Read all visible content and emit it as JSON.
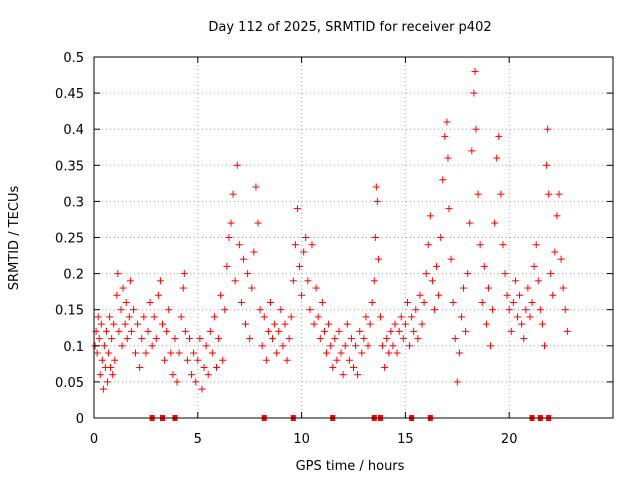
{
  "chart_data": {
    "type": "scatter",
    "title": "Day 112 of 2025, SRMTID for receiver p402",
    "xlabel": "GPS time / hours",
    "ylabel": "SRMTID / TECUs",
    "xlim": [
      0,
      25
    ],
    "ylim": [
      0,
      0.5
    ],
    "x_ticks": [
      0,
      5,
      10,
      15,
      20
    ],
    "x_tick_labels": [
      "0",
      "5",
      "10",
      "15",
      "20"
    ],
    "y_ticks": [
      0,
      0.05,
      0.1,
      0.15,
      0.2,
      0.25,
      0.3,
      0.35,
      0.4,
      0.45,
      0.5
    ],
    "y_tick_labels": [
      "0",
      "0.05",
      "0.1",
      "0.15",
      "0.2",
      "0.25",
      "0.3",
      "0.35",
      "0.4",
      "0.45",
      "0.5"
    ],
    "grid": true,
    "marker": "+",
    "series_color": "#ff0000",
    "zero_value_hours": [
      2.8,
      3.3,
      3.9,
      8.2,
      9.6,
      11.5,
      13.5,
      13.8,
      15.3,
      16.2,
      21.1,
      21.5,
      21.9
    ],
    "series": [
      {
        "name": "SRMTID",
        "points": [
          [
            0.05,
            0.1
          ],
          [
            0.1,
            0.12
          ],
          [
            0.15,
            0.09
          ],
          [
            0.2,
            0.14
          ],
          [
            0.25,
            0.11
          ],
          [
            0.3,
            0.06
          ],
          [
            0.35,
            0.13
          ],
          [
            0.4,
            0.08
          ],
          [
            0.45,
            0.04
          ],
          [
            0.5,
            0.1
          ],
          [
            0.55,
            0.07
          ],
          [
            0.6,
            0.12
          ],
          [
            0.65,
            0.05
          ],
          [
            0.7,
            0.09
          ],
          [
            0.75,
            0.14
          ],
          [
            0.8,
            0.07
          ],
          [
            0.85,
            0.11
          ],
          [
            0.9,
            0.06
          ],
          [
            0.95,
            0.13
          ],
          [
            1.0,
            0.08
          ],
          [
            1.1,
            0.17
          ],
          [
            1.15,
            0.2
          ],
          [
            1.2,
            0.12
          ],
          [
            1.3,
            0.15
          ],
          [
            1.35,
            0.1
          ],
          [
            1.4,
            0.18
          ],
          [
            1.5,
            0.13
          ],
          [
            1.55,
            0.16
          ],
          [
            1.6,
            0.11
          ],
          [
            1.7,
            0.14
          ],
          [
            1.75,
            0.19
          ],
          [
            1.8,
            0.12
          ],
          [
            1.9,
            0.15
          ],
          [
            2.0,
            0.09
          ],
          [
            2.1,
            0.13
          ],
          [
            2.2,
            0.07
          ],
          [
            2.3,
            0.11
          ],
          [
            2.4,
            0.14
          ],
          [
            2.5,
            0.09
          ],
          [
            2.6,
            0.12
          ],
          [
            2.7,
            0.16
          ],
          [
            2.8,
            0.1
          ],
          [
            2.9,
            0.14
          ],
          [
            3.0,
            0.11
          ],
          [
            3.1,
            0.17
          ],
          [
            3.2,
            0.19
          ],
          [
            3.3,
            0.13
          ],
          [
            3.4,
            0.08
          ],
          [
            3.5,
            0.12
          ],
          [
            3.6,
            0.15
          ],
          [
            3.7,
            0.09
          ],
          [
            3.8,
            0.06
          ],
          [
            3.9,
            0.11
          ],
          [
            4.0,
            0.05
          ],
          [
            4.1,
            0.09
          ],
          [
            4.2,
            0.14
          ],
          [
            4.3,
            0.18
          ],
          [
            4.35,
            0.2
          ],
          [
            4.4,
            0.12
          ],
          [
            4.5,
            0.08
          ],
          [
            4.6,
            0.11
          ],
          [
            4.7,
            0.06
          ],
          [
            4.8,
            0.09
          ],
          [
            4.9,
            0.05
          ],
          [
            5.0,
            0.08
          ],
          [
            5.1,
            0.11
          ],
          [
            5.2,
            0.04
          ],
          [
            5.3,
            0.07
          ],
          [
            5.4,
            0.1
          ],
          [
            5.5,
            0.06
          ],
          [
            5.6,
            0.12
          ],
          [
            5.7,
            0.09
          ],
          [
            5.8,
            0.14
          ],
          [
            5.9,
            0.07
          ],
          [
            6.0,
            0.11
          ],
          [
            6.1,
            0.17
          ],
          [
            6.2,
            0.08
          ],
          [
            6.3,
            0.15
          ],
          [
            6.4,
            0.21
          ],
          [
            6.5,
            0.25
          ],
          [
            6.6,
            0.27
          ],
          [
            6.7,
            0.31
          ],
          [
            6.8,
            0.19
          ],
          [
            6.9,
            0.35
          ],
          [
            7.0,
            0.24
          ],
          [
            7.1,
            0.16
          ],
          [
            7.2,
            0.22
          ],
          [
            7.3,
            0.13
          ],
          [
            7.4,
            0.2
          ],
          [
            7.5,
            0.11
          ],
          [
            7.6,
            0.18
          ],
          [
            7.7,
            0.23
          ],
          [
            7.8,
            0.32
          ],
          [
            7.9,
            0.27
          ],
          [
            8.0,
            0.15
          ],
          [
            8.1,
            0.1
          ],
          [
            8.2,
            0.14
          ],
          [
            8.3,
            0.08
          ],
          [
            8.4,
            0.12
          ],
          [
            8.5,
            0.16
          ],
          [
            8.6,
            0.11
          ],
          [
            8.7,
            0.13
          ],
          [
            8.8,
            0.09
          ],
          [
            8.9,
            0.12
          ],
          [
            9.0,
            0.15
          ],
          [
            9.1,
            0.1
          ],
          [
            9.2,
            0.13
          ],
          [
            9.3,
            0.08
          ],
          [
            9.4,
            0.11
          ],
          [
            9.5,
            0.14
          ],
          [
            9.6,
            0.19
          ],
          [
            9.7,
            0.24
          ],
          [
            9.8,
            0.29
          ],
          [
            9.9,
            0.21
          ],
          [
            10.0,
            0.17
          ],
          [
            10.1,
            0.23
          ],
          [
            10.2,
            0.25
          ],
          [
            10.3,
            0.19
          ],
          [
            10.4,
            0.15
          ],
          [
            10.5,
            0.24
          ],
          [
            10.6,
            0.13
          ],
          [
            10.7,
            0.18
          ],
          [
            10.8,
            0.14
          ],
          [
            10.9,
            0.11
          ],
          [
            11.0,
            0.16
          ],
          [
            11.1,
            0.12
          ],
          [
            11.2,
            0.09
          ],
          [
            11.3,
            0.13
          ],
          [
            11.4,
            0.1
          ],
          [
            11.5,
            0.07
          ],
          [
            11.6,
            0.11
          ],
          [
            11.7,
            0.08
          ],
          [
            11.8,
            0.12
          ],
          [
            11.9,
            0.09
          ],
          [
            12.0,
            0.06
          ],
          [
            12.1,
            0.1
          ],
          [
            12.2,
            0.13
          ],
          [
            12.3,
            0.08
          ],
          [
            12.4,
            0.11
          ],
          [
            12.5,
            0.07
          ],
          [
            12.6,
            0.1
          ],
          [
            12.7,
            0.06
          ],
          [
            12.8,
            0.12
          ],
          [
            12.9,
            0.09
          ],
          [
            13.0,
            0.11
          ],
          [
            13.1,
            0.14
          ],
          [
            13.2,
            0.1
          ],
          [
            13.3,
            0.13
          ],
          [
            13.4,
            0.16
          ],
          [
            13.5,
            0.19
          ],
          [
            13.55,
            0.25
          ],
          [
            13.6,
            0.32
          ],
          [
            13.65,
            0.3
          ],
          [
            13.7,
            0.22
          ],
          [
            13.8,
            0.14
          ],
          [
            13.9,
            0.1
          ],
          [
            14.0,
            0.07
          ],
          [
            14.1,
            0.11
          ],
          [
            14.2,
            0.09
          ],
          [
            14.3,
            0.12
          ],
          [
            14.4,
            0.1
          ],
          [
            14.5,
            0.13
          ],
          [
            14.6,
            0.09
          ],
          [
            14.7,
            0.12
          ],
          [
            14.8,
            0.14
          ],
          [
            14.9,
            0.11
          ],
          [
            15.0,
            0.13
          ],
          [
            15.1,
            0.16
          ],
          [
            15.2,
            0.1
          ],
          [
            15.3,
            0.14
          ],
          [
            15.4,
            0.12
          ],
          [
            15.5,
            0.15
          ],
          [
            15.6,
            0.11
          ],
          [
            15.7,
            0.17
          ],
          [
            15.8,
            0.13
          ],
          [
            15.9,
            0.16
          ],
          [
            16.0,
            0.2
          ],
          [
            16.1,
            0.24
          ],
          [
            16.2,
            0.28
          ],
          [
            16.3,
            0.19
          ],
          [
            16.4,
            0.15
          ],
          [
            16.5,
            0.21
          ],
          [
            16.6,
            0.17
          ],
          [
            16.7,
            0.25
          ],
          [
            16.8,
            0.33
          ],
          [
            16.9,
            0.39
          ],
          [
            17.0,
            0.41
          ],
          [
            17.05,
            0.36
          ],
          [
            17.1,
            0.29
          ],
          [
            17.2,
            0.22
          ],
          [
            17.3,
            0.16
          ],
          [
            17.4,
            0.11
          ],
          [
            17.5,
            0.05
          ],
          [
            17.6,
            0.09
          ],
          [
            17.7,
            0.14
          ],
          [
            17.8,
            0.18
          ],
          [
            17.9,
            0.12
          ],
          [
            18.0,
            0.2
          ],
          [
            18.1,
            0.27
          ],
          [
            18.2,
            0.37
          ],
          [
            18.3,
            0.45
          ],
          [
            18.35,
            0.48
          ],
          [
            18.4,
            0.4
          ],
          [
            18.5,
            0.31
          ],
          [
            18.6,
            0.24
          ],
          [
            18.7,
            0.16
          ],
          [
            18.8,
            0.21
          ],
          [
            18.9,
            0.13
          ],
          [
            19.0,
            0.18
          ],
          [
            19.1,
            0.1
          ],
          [
            19.2,
            0.15
          ],
          [
            19.3,
            0.27
          ],
          [
            19.4,
            0.36
          ],
          [
            19.5,
            0.39
          ],
          [
            19.6,
            0.31
          ],
          [
            19.7,
            0.24
          ],
          [
            19.8,
            0.2
          ],
          [
            19.9,
            0.17
          ],
          [
            20.0,
            0.15
          ],
          [
            20.1,
            0.12
          ],
          [
            20.2,
            0.16
          ],
          [
            20.3,
            0.19
          ],
          [
            20.4,
            0.14
          ],
          [
            20.5,
            0.17
          ],
          [
            20.6,
            0.13
          ],
          [
            20.7,
            0.11
          ],
          [
            20.8,
            0.15
          ],
          [
            20.9,
            0.18
          ],
          [
            21.0,
            0.14
          ],
          [
            21.1,
            0.16
          ],
          [
            21.2,
            0.21
          ],
          [
            21.3,
            0.24
          ],
          [
            21.4,
            0.19
          ],
          [
            21.5,
            0.15
          ],
          [
            21.6,
            0.13
          ],
          [
            21.7,
            0.1
          ],
          [
            21.8,
            0.35
          ],
          [
            21.85,
            0.4
          ],
          [
            21.9,
            0.31
          ],
          [
            22.0,
            0.2
          ],
          [
            22.1,
            0.17
          ],
          [
            22.2,
            0.23
          ],
          [
            22.3,
            0.28
          ],
          [
            22.4,
            0.31
          ],
          [
            22.5,
            0.22
          ],
          [
            22.6,
            0.18
          ],
          [
            22.7,
            0.15
          ],
          [
            22.8,
            0.12
          ]
        ]
      }
    ]
  }
}
